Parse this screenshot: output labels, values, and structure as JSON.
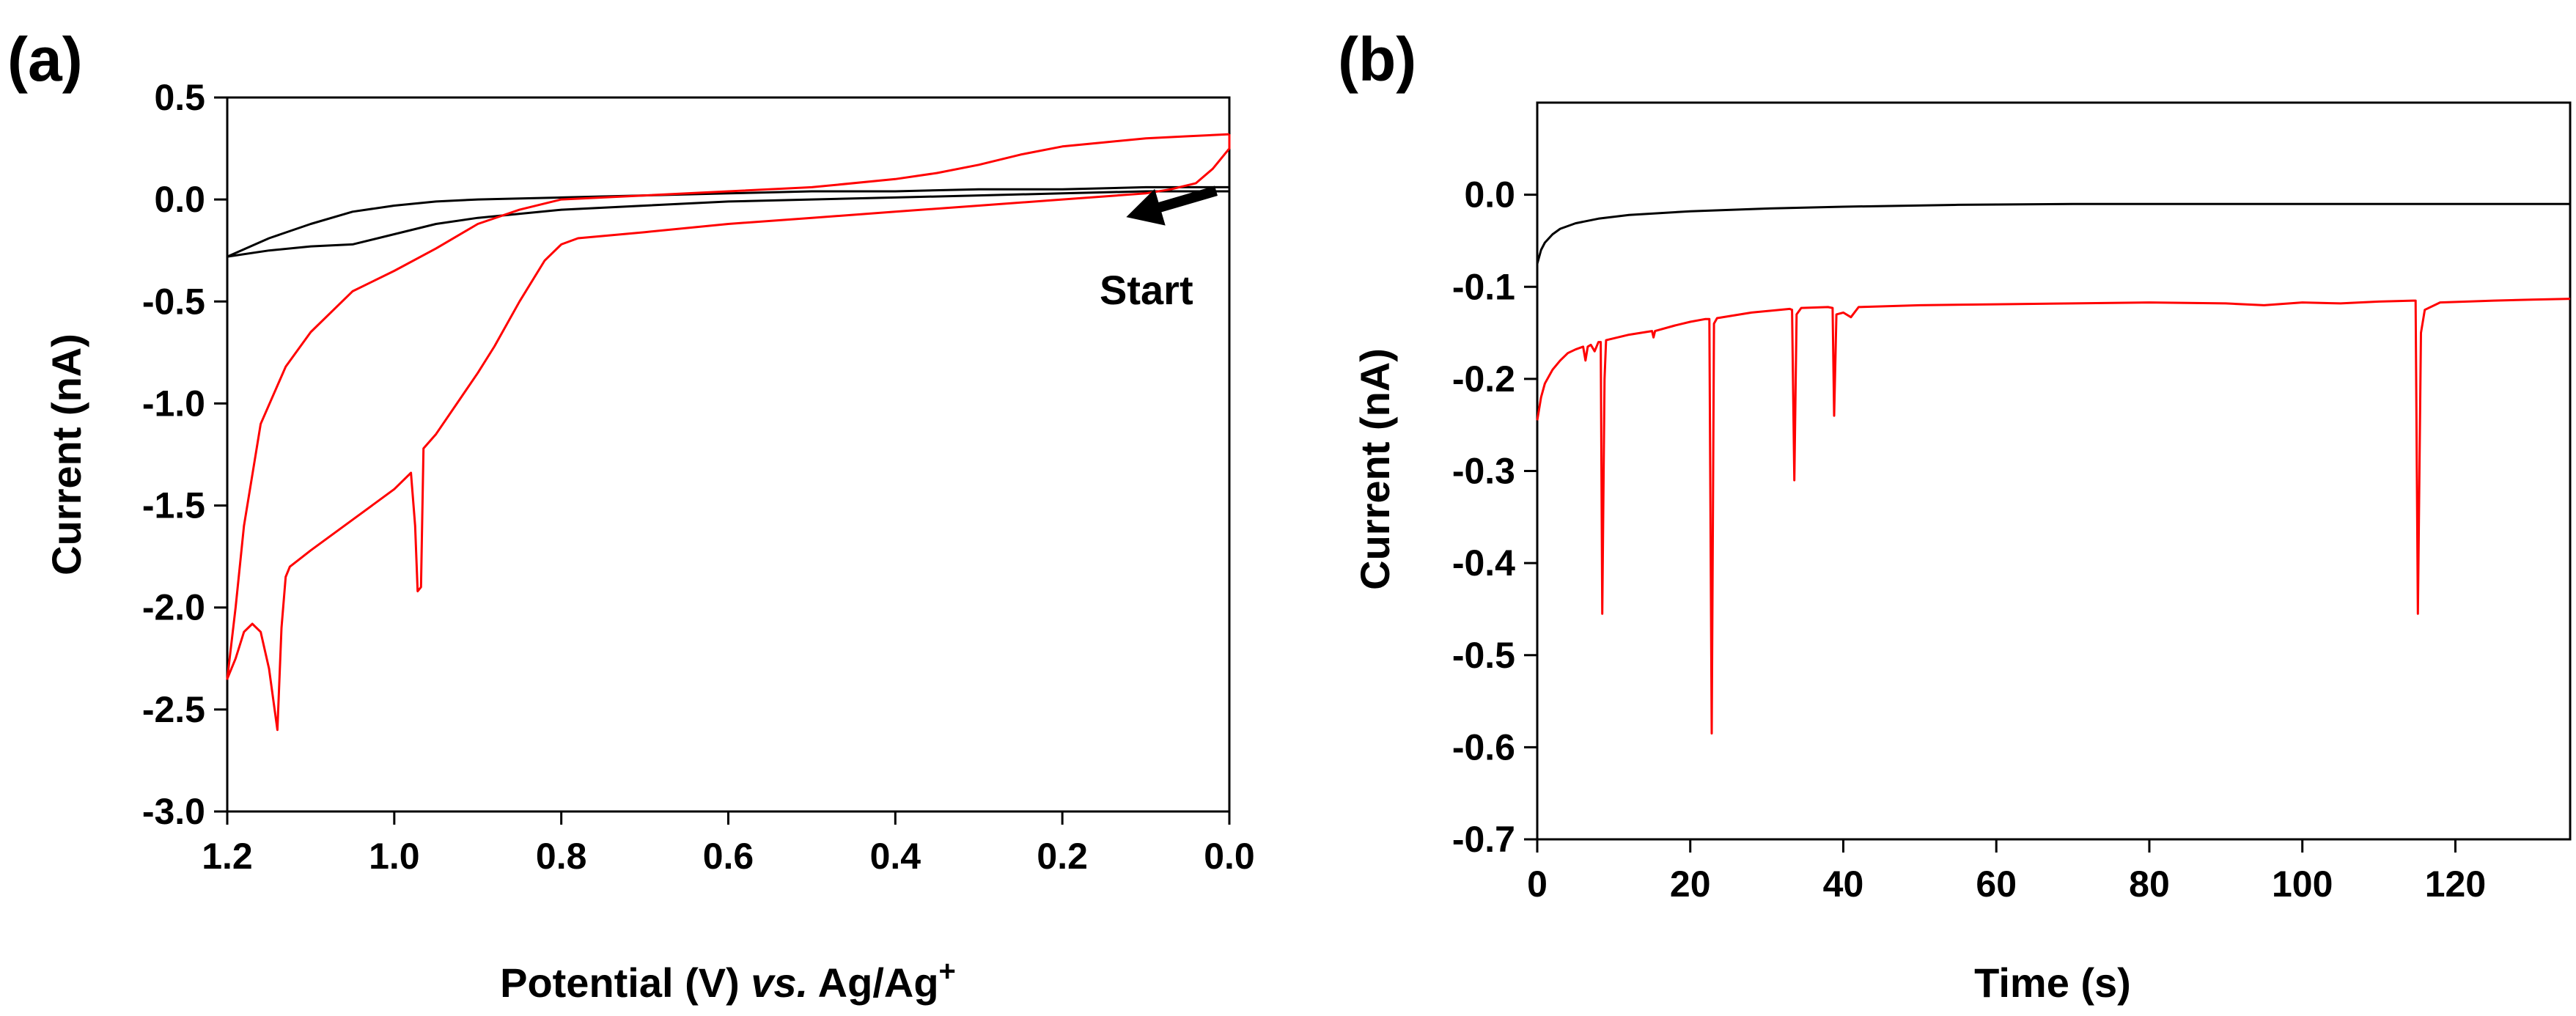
{
  "chart_data": [
    {
      "panel_label": "(a)",
      "type": "line",
      "xlabel_parts": [
        "Potential (V) ",
        "vs.",
        " Ag/Ag",
        "+"
      ],
      "ylabel": "Current (nA)",
      "xlim": [
        1.2,
        0.0
      ],
      "ylim": [
        -3.0,
        0.5
      ],
      "x_reversed": true,
      "grid": false,
      "x_ticks": [
        1.2,
        1.0,
        0.8,
        0.6,
        0.4,
        0.2,
        0.0
      ],
      "x_tick_labels": [
        "1.2",
        "1.0",
        "0.8",
        "0.6",
        "0.4",
        "0.2",
        "0.0"
      ],
      "y_ticks": [
        0.5,
        0.0,
        -0.5,
        -1.0,
        -1.5,
        -2.0,
        -2.5,
        -3.0
      ],
      "y_tick_labels": [
        "0.5",
        "0.0",
        "-0.5",
        "-1.0",
        "-1.5",
        "-2.0",
        "-2.5",
        "-3.0"
      ],
      "annotation": {
        "text": "Start",
        "arrow_from": [
          0.0,
          0.05
        ],
        "arrow_to": [
          0.13,
          -0.05
        ]
      },
      "series": [
        {
          "name": "black",
          "color": "#000000",
          "points": [
            [
              0.0,
              0.06
            ],
            [
              0.1,
              0.06
            ],
            [
              0.2,
              0.05
            ],
            [
              0.3,
              0.05
            ],
            [
              0.4,
              0.04
            ],
            [
              0.5,
              0.04
            ],
            [
              0.6,
              0.03
            ],
            [
              0.7,
              0.02
            ],
            [
              0.8,
              0.01
            ],
            [
              0.9,
              0.0
            ],
            [
              0.95,
              -0.01
            ],
            [
              1.0,
              -0.03
            ],
            [
              1.05,
              -0.06
            ],
            [
              1.1,
              -0.12
            ],
            [
              1.15,
              -0.19
            ],
            [
              1.2,
              -0.28
            ],
            [
              1.15,
              -0.25
            ],
            [
              1.1,
              -0.23
            ],
            [
              1.05,
              -0.22
            ],
            [
              1.0,
              -0.17
            ],
            [
              0.95,
              -0.12
            ],
            [
              0.9,
              -0.09
            ],
            [
              0.8,
              -0.05
            ],
            [
              0.7,
              -0.03
            ],
            [
              0.6,
              -0.01
            ],
            [
              0.5,
              0.0
            ],
            [
              0.4,
              0.01
            ],
            [
              0.3,
              0.02
            ],
            [
              0.2,
              0.03
            ],
            [
              0.1,
              0.04
            ],
            [
              0.0,
              0.04
            ]
          ]
        },
        {
          "name": "red",
          "color": "#ff0000",
          "points": [
            [
              0.0,
              0.32
            ],
            [
              0.0,
              0.25
            ],
            [
              0.02,
              0.15
            ],
            [
              0.04,
              0.08
            ],
            [
              0.07,
              0.05
            ],
            [
              0.1,
              0.03
            ],
            [
              0.2,
              0.0
            ],
            [
              0.3,
              -0.03
            ],
            [
              0.4,
              -0.06
            ],
            [
              0.5,
              -0.09
            ],
            [
              0.6,
              -0.12
            ],
            [
              0.7,
              -0.16
            ],
            [
              0.78,
              -0.19
            ],
            [
              0.8,
              -0.22
            ],
            [
              0.82,
              -0.3
            ],
            [
              0.85,
              -0.5
            ],
            [
              0.88,
              -0.72
            ],
            [
              0.9,
              -0.85
            ],
            [
              0.92,
              -0.97
            ],
            [
              0.95,
              -1.15
            ],
            [
              0.965,
              -1.22
            ],
            [
              0.968,
              -1.9
            ],
            [
              0.972,
              -1.92
            ],
            [
              0.975,
              -1.6
            ],
            [
              0.98,
              -1.34
            ],
            [
              1.0,
              -1.42
            ],
            [
              1.05,
              -1.57
            ],
            [
              1.1,
              -1.72
            ],
            [
              1.125,
              -1.8
            ],
            [
              1.13,
              -1.85
            ],
            [
              1.135,
              -2.1
            ],
            [
              1.14,
              -2.6
            ],
            [
              1.15,
              -2.3
            ],
            [
              1.16,
              -2.12
            ],
            [
              1.17,
              -2.08
            ],
            [
              1.18,
              -2.12
            ],
            [
              1.19,
              -2.25
            ],
            [
              1.2,
              -2.35
            ],
            [
              1.19,
              -2.0
            ],
            [
              1.18,
              -1.6
            ],
            [
              1.16,
              -1.1
            ],
            [
              1.13,
              -0.82
            ],
            [
              1.1,
              -0.65
            ],
            [
              1.05,
              -0.45
            ],
            [
              1.0,
              -0.35
            ],
            [
              0.95,
              -0.24
            ],
            [
              0.9,
              -0.12
            ],
            [
              0.85,
              -0.05
            ],
            [
              0.8,
              0.0
            ],
            [
              0.7,
              0.02
            ],
            [
              0.6,
              0.04
            ],
            [
              0.5,
              0.06
            ],
            [
              0.4,
              0.1
            ],
            [
              0.35,
              0.13
            ],
            [
              0.3,
              0.17
            ],
            [
              0.25,
              0.22
            ],
            [
              0.2,
              0.26
            ],
            [
              0.15,
              0.28
            ],
            [
              0.1,
              0.3
            ],
            [
              0.05,
              0.31
            ],
            [
              0.0,
              0.32
            ]
          ]
        }
      ]
    },
    {
      "panel_label": "(b)",
      "type": "line",
      "xlabel": "Time (s)",
      "ylabel": "Current (nA)",
      "xlim": [
        0,
        135
      ],
      "ylim": [
        -0.7,
        0.1
      ],
      "grid": false,
      "x_ticks": [
        0,
        20,
        40,
        60,
        80,
        100,
        120
      ],
      "x_tick_labels": [
        "0",
        "20",
        "40",
        "60",
        "80",
        "100",
        "120"
      ],
      "y_ticks": [
        0.0,
        -0.1,
        -0.2,
        -0.3,
        -0.4,
        -0.5,
        -0.6,
        -0.7
      ],
      "y_tick_labels": [
        "0.0",
        "-0.1",
        "-0.2",
        "-0.3",
        "-0.4",
        "-0.5",
        "-0.6",
        "-0.7"
      ],
      "series": [
        {
          "name": "black",
          "color": "#000000",
          "points": [
            [
              0,
              -0.075
            ],
            [
              0.5,
              -0.06
            ],
            [
              1,
              -0.052
            ],
            [
              2,
              -0.043
            ],
            [
              3,
              -0.037
            ],
            [
              5,
              -0.031
            ],
            [
              8,
              -0.026
            ],
            [
              12,
              -0.022
            ],
            [
              20,
              -0.018
            ],
            [
              30,
              -0.015
            ],
            [
              40,
              -0.013
            ],
            [
              55,
              -0.011
            ],
            [
              70,
              -0.01
            ],
            [
              100,
              -0.01
            ],
            [
              135,
              -0.01
            ]
          ]
        },
        {
          "name": "red",
          "color": "#ff0000",
          "points": [
            [
              0,
              -0.245
            ],
            [
              0.5,
              -0.22
            ],
            [
              1,
              -0.205
            ],
            [
              2,
              -0.19
            ],
            [
              3,
              -0.18
            ],
            [
              4,
              -0.172
            ],
            [
              5,
              -0.168
            ],
            [
              6,
              -0.165
            ],
            [
              6.3,
              -0.18
            ],
            [
              6.6,
              -0.165
            ],
            [
              7,
              -0.163
            ],
            [
              7.5,
              -0.17
            ],
            [
              8,
              -0.16
            ],
            [
              8.3,
              -0.16
            ],
            [
              8.5,
              -0.455
            ],
            [
              8.8,
              -0.2
            ],
            [
              9,
              -0.158
            ],
            [
              12,
              -0.152
            ],
            [
              15,
              -0.148
            ],
            [
              15.2,
              -0.155
            ],
            [
              15.4,
              -0.148
            ],
            [
              18,
              -0.142
            ],
            [
              20,
              -0.138
            ],
            [
              22,
              -0.135
            ],
            [
              22.5,
              -0.135
            ],
            [
              22.8,
              -0.585
            ],
            [
              23.1,
              -0.14
            ],
            [
              23.5,
              -0.134
            ],
            [
              28,
              -0.128
            ],
            [
              33,
              -0.124
            ],
            [
              33.3,
              -0.125
            ],
            [
              33.6,
              -0.31
            ],
            [
              33.9,
              -0.13
            ],
            [
              34.5,
              -0.123
            ],
            [
              38,
              -0.122
            ],
            [
              38.6,
              -0.123
            ],
            [
              38.8,
              -0.24
            ],
            [
              39.1,
              -0.13
            ],
            [
              40,
              -0.128
            ],
            [
              41,
              -0.133
            ],
            [
              42,
              -0.122
            ],
            [
              50,
              -0.12
            ],
            [
              60,
              -0.119
            ],
            [
              70,
              -0.118
            ],
            [
              80,
              -0.117
            ],
            [
              90,
              -0.118
            ],
            [
              95,
              -0.12
            ],
            [
              100,
              -0.117
            ],
            [
              105,
              -0.118
            ],
            [
              110,
              -0.116
            ],
            [
              114.5,
              -0.115
            ],
            [
              114.8,
              -0.115
            ],
            [
              115.1,
              -0.455
            ],
            [
              115.5,
              -0.15
            ],
            [
              116,
              -0.125
            ],
            [
              118,
              -0.117
            ],
            [
              125,
              -0.115
            ],
            [
              130,
              -0.114
            ],
            [
              135,
              -0.113
            ]
          ]
        }
      ]
    }
  ]
}
